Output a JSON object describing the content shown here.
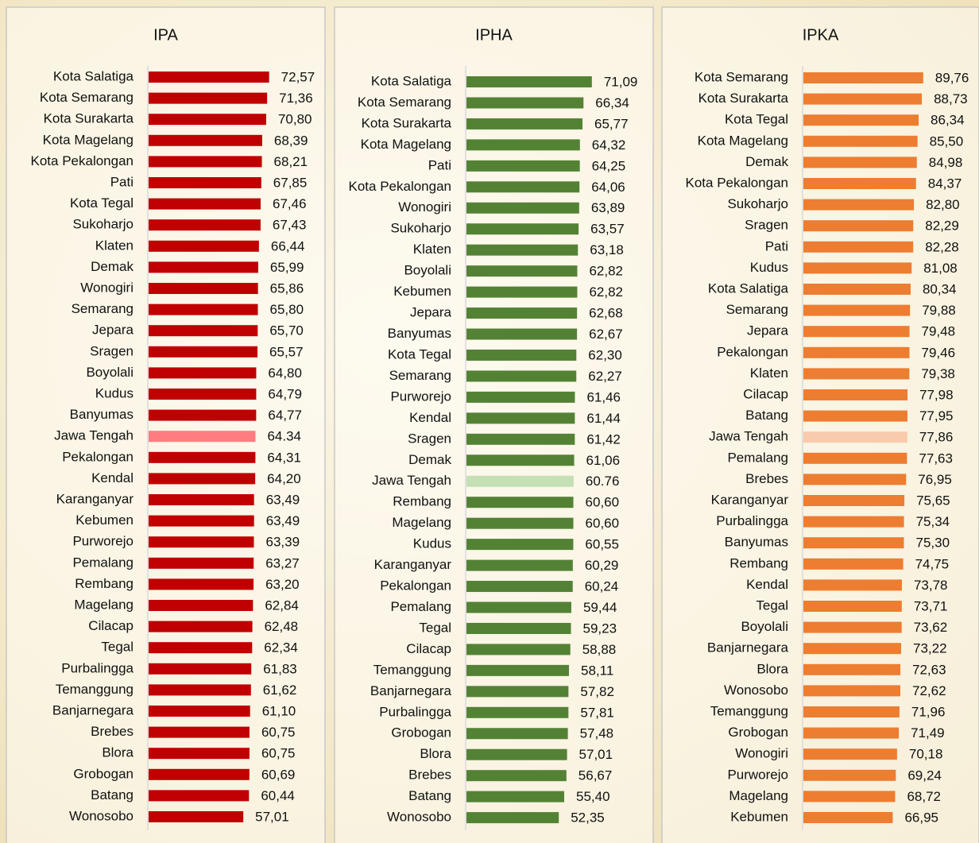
{
  "chart_data": [
    {
      "type": "bar",
      "orientation": "horizontal",
      "title": "IPA",
      "color": "#c00000",
      "highlight": {
        "index": 17,
        "color": "#ff7c80"
      },
      "categories": [
        "Kota Salatiga",
        "Kota Semarang",
        "Kota Surakarta",
        "Kota Magelang",
        "Kota Pekalongan",
        "Pati",
        "Kota Tegal",
        "Sukoharjo",
        "Klaten",
        "Demak",
        "Wonogiri",
        "Semarang",
        "Jepara",
        "Sragen",
        "Boyolali",
        "Kudus",
        "Banyumas",
        "Jawa Tengah",
        "Pekalongan",
        "Kendal",
        "Karanganyar",
        "Kebumen",
        "Purworejo",
        "Pemalang",
        "Rembang",
        "Magelang",
        "Cilacap",
        "Tegal",
        "Purbalingga",
        "Temanggung",
        "Banjarnegara",
        "Brebes",
        "Blora",
        "Grobogan",
        "Batang",
        "Wonosobo"
      ],
      "values": [
        72.57,
        71.36,
        70.8,
        68.39,
        68.21,
        67.85,
        67.46,
        67.43,
        66.44,
        65.99,
        65.86,
        65.8,
        65.7,
        65.57,
        64.8,
        64.79,
        64.77,
        64.34,
        64.31,
        64.2,
        63.49,
        63.49,
        63.39,
        63.27,
        63.2,
        62.84,
        62.48,
        62.34,
        61.83,
        61.62,
        61.1,
        60.75,
        60.75,
        60.69,
        60.44,
        57.01
      ],
      "value_labels": [
        "72,57",
        "71,36",
        "70,80",
        "68,39",
        "68,21",
        "67,85",
        "67,46",
        "67,43",
        "66,44",
        "65,99",
        "65,86",
        "65,80",
        "65,70",
        "65,57",
        "64,80",
        "64,79",
        "64,77",
        "64.34",
        "64,31",
        "64,20",
        "63,49",
        "63,49",
        "63,39",
        "63,27",
        "63,20",
        "62,84",
        "62,48",
        "62,34",
        "61,83",
        "61,62",
        "61,10",
        "60,75",
        "60,75",
        "60,69",
        "60,44",
        "57,01"
      ]
    },
    {
      "type": "bar",
      "orientation": "horizontal",
      "title": "IPHA",
      "color": "#548235",
      "highlight": {
        "index": 19,
        "color": "#c5e0b4"
      },
      "categories": [
        "Kota Salatiga",
        "Kota Semarang",
        "Kota Surakarta",
        "Kota Magelang",
        "Pati",
        "Kota Pekalongan",
        "Wonogiri",
        "Sukoharjo",
        "Klaten",
        "Boyolali",
        "Kebumen",
        "Jepara",
        "Banyumas",
        "Kota Tegal",
        "Semarang",
        "Purworejo",
        "Kendal",
        "Sragen",
        "Demak",
        "Jawa Tengah",
        "Rembang",
        "Magelang",
        "Kudus",
        "Karanganyar",
        "Pekalongan",
        "Pemalang",
        "Tegal",
        "Cilacap",
        "Temanggung",
        "Banjarnegara",
        "Purbalingga",
        "Grobogan",
        "Blora",
        "Brebes",
        "Batang",
        "Wonosobo"
      ],
      "values": [
        71.09,
        66.34,
        65.77,
        64.32,
        64.25,
        64.06,
        63.89,
        63.57,
        63.18,
        62.82,
        62.82,
        62.68,
        62.67,
        62.3,
        62.27,
        61.46,
        61.44,
        61.42,
        61.06,
        60.76,
        60.6,
        60.6,
        60.55,
        60.29,
        60.24,
        59.44,
        59.23,
        58.88,
        58.11,
        57.82,
        57.81,
        57.48,
        57.01,
        56.67,
        55.4,
        52.35
      ],
      "value_labels": [
        "71,09",
        "66,34",
        "65,77",
        "64,32",
        "64,25",
        "64,06",
        "63,89",
        "63,57",
        "63,18",
        "62,82",
        "62,82",
        "62,68",
        "62,67",
        "62,30",
        "62,27",
        "61,46",
        "61,44",
        "61,42",
        "61,06",
        "60.76",
        "60,60",
        "60,60",
        "60,55",
        "60,29",
        "60,24",
        "59,44",
        "59,23",
        "58,88",
        "58,11",
        "57,82",
        "57,81",
        "57,48",
        "57,01",
        "56,67",
        "55,40",
        "52,35"
      ]
    },
    {
      "type": "bar",
      "orientation": "horizontal",
      "title": "IPKA",
      "color": "#ed7d31",
      "highlight": {
        "index": 17,
        "color": "#f8cbad"
      },
      "categories": [
        "Kota Semarang",
        "Kota Surakarta",
        "Kota Tegal",
        "Kota Magelang",
        "Demak",
        "Kota Pekalongan",
        "Sukoharjo",
        "Sragen",
        "Pati",
        "Kudus",
        "Kota Salatiga",
        "Semarang",
        "Jepara",
        "Pekalongan",
        "Klaten",
        "Cilacap",
        "Batang",
        "Jawa Tengah",
        "Pemalang",
        "Brebes",
        "Karanganyar",
        "Purbalingga",
        "Banyumas",
        "Rembang",
        "Kendal",
        "Tegal",
        "Boyolali",
        "Banjarnegara",
        "Blora",
        "Wonosobo",
        "Temanggung",
        "Grobogan",
        "Wonogiri",
        "Purworejo",
        "Magelang",
        "Kebumen"
      ],
      "values": [
        89.76,
        88.73,
        86.34,
        85.5,
        84.98,
        84.37,
        82.8,
        82.29,
        82.28,
        81.08,
        80.34,
        79.88,
        79.48,
        79.46,
        79.38,
        77.98,
        77.95,
        77.86,
        77.63,
        76.95,
        75.65,
        75.34,
        75.3,
        74.75,
        73.78,
        73.71,
        73.62,
        73.22,
        72.63,
        72.62,
        71.96,
        71.49,
        70.18,
        69.24,
        68.72,
        66.95
      ],
      "value_labels": [
        "89,76",
        "88,73",
        "86,34",
        "85,50",
        "84,98",
        "84,37",
        "82,80",
        "82,29",
        "82,28",
        "81,08",
        "80,34",
        "79,88",
        "79,48",
        "79,46",
        "79,38",
        "77,98",
        "77,95",
        "77,86",
        "77,63",
        "76,95",
        "75,65",
        "75,34",
        "75,30",
        "74,75",
        "73,78",
        "73,71",
        "73,62",
        "73,22",
        "72,63",
        "72,62",
        "71,96",
        "71,49",
        "70,18",
        "69,24",
        "68,72",
        "66,95"
      ]
    }
  ]
}
